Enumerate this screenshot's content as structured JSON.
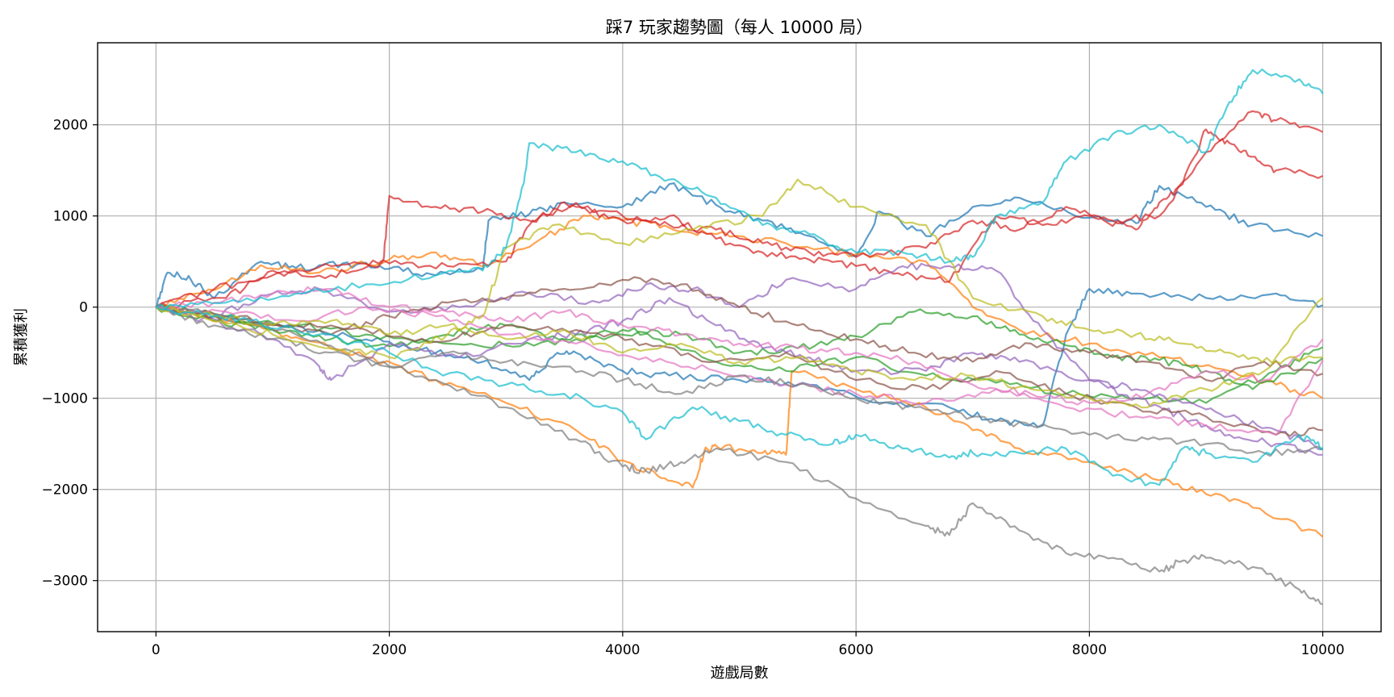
{
  "chart_data": {
    "type": "line",
    "title": "踩7 玩家趨勢圖（每人 10000 局）",
    "xlabel": "遊戲局數",
    "ylabel": "累積獲利",
    "xlim": [
      -500,
      10500
    ],
    "ylim": [
      -3560,
      2900
    ],
    "xticks": [
      0,
      2000,
      4000,
      6000,
      8000,
      10000
    ],
    "yticks": [
      -3000,
      -2000,
      -1000,
      0,
      1000,
      2000
    ],
    "grid": true,
    "legend": "none",
    "series": [
      {
        "color": "#1f77b4",
        "x": [
          0,
          100,
          300,
          500,
          900,
          1200,
          1600,
          2000,
          2400,
          2800,
          2850,
          3200,
          3500,
          4000,
          4400,
          4800,
          5200,
          5600,
          6000,
          6200,
          6600,
          7000,
          7400,
          8000,
          8400,
          8600,
          9000,
          9400,
          10000
        ],
        "y": [
          0,
          380,
          300,
          100,
          500,
          430,
          480,
          420,
          350,
          420,
          950,
          1020,
          1150,
          1100,
          1350,
          1120,
          950,
          780,
          560,
          1050,
          780,
          1100,
          1200,
          980,
          920,
          1330,
          1100,
          900,
          780
        ]
      },
      {
        "color": "#1f77b4",
        "x": [
          0,
          500,
          1000,
          1500,
          2000,
          2400,
          2800,
          3200,
          3400,
          3600,
          4000,
          4400,
          5000,
          5600,
          6200,
          6800,
          7200,
          7600,
          7800,
          8000,
          8400,
          9000,
          9600,
          10000
        ],
        "y": [
          0,
          -100,
          -200,
          -300,
          -380,
          -500,
          -600,
          -800,
          -550,
          -500,
          -700,
          -750,
          -800,
          -850,
          -1050,
          -1100,
          -1250,
          -1300,
          -300,
          200,
          150,
          100,
          150,
          20
        ]
      },
      {
        "color": "#ff7f0e",
        "x": [
          0,
          400,
          900,
          1400,
          2000,
          2400,
          2800,
          3300,
          3700,
          4000,
          4400,
          4800,
          5400,
          6000,
          6600,
          7000,
          7400,
          8000,
          8600,
          9200,
          9600,
          10000
        ],
        "y": [
          0,
          150,
          460,
          380,
          520,
          600,
          450,
          750,
          1000,
          950,
          870,
          800,
          700,
          580,
          500,
          0,
          -250,
          -400,
          -550,
          -700,
          -850,
          -1000
        ]
      },
      {
        "color": "#ff7f0e",
        "x": [
          0,
          400,
          800,
          1200,
          1800,
          2400,
          3000,
          3600,
          4000,
          4300,
          4600,
          4700,
          4800,
          5200,
          5400,
          5450,
          6000,
          6600,
          7000,
          7400,
          8000,
          8600,
          9000,
          9400,
          10000
        ],
        "y": [
          0,
          -100,
          -200,
          -330,
          -550,
          -800,
          -1050,
          -1350,
          -1680,
          -1850,
          -1980,
          -1580,
          -1520,
          -1600,
          -1620,
          -700,
          -900,
          -1100,
          -1350,
          -1550,
          -1700,
          -1900,
          -2050,
          -2200,
          -2520
        ]
      },
      {
        "color": "#2ca02c",
        "x": [
          0,
          500,
          1000,
          1500,
          2000,
          2500,
          3000,
          3500,
          4000,
          4500,
          5000,
          5500,
          6000,
          6500,
          7000,
          7400,
          7800,
          8200,
          8600,
          9000,
          9400,
          10000
        ],
        "y": [
          0,
          -150,
          -250,
          -350,
          -430,
          -300,
          -200,
          -350,
          -250,
          -300,
          -500,
          -450,
          -320,
          -50,
          -100,
          -300,
          -420,
          -550,
          -580,
          -700,
          -900,
          -560
        ]
      },
      {
        "color": "#2ca02c",
        "x": [
          0,
          600,
          1200,
          1800,
          2400,
          3000,
          3600,
          4200,
          4800,
          5400,
          6000,
          6600,
          7200,
          7800,
          8400,
          9000,
          9600,
          10000
        ],
        "y": [
          0,
          -100,
          -200,
          -300,
          -380,
          -420,
          -350,
          -280,
          -600,
          -700,
          -550,
          -750,
          -830,
          -950,
          -1000,
          -1050,
          -700,
          -440
        ]
      },
      {
        "color": "#d62728",
        "x": [
          0,
          600,
          1000,
          1500,
          1950,
          2000,
          2400,
          2800,
          3200,
          3600,
          4000,
          4400,
          4800,
          5200,
          5600,
          6000,
          6400,
          6800,
          7200,
          7600,
          8000,
          8400,
          8600,
          8800,
          9000,
          9200,
          9400,
          9600,
          10000
        ],
        "y": [
          0,
          100,
          400,
          350,
          520,
          1220,
          1100,
          1050,
          950,
          1100,
          950,
          1000,
          750,
          600,
          520,
          450,
          350,
          280,
          1000,
          900,
          1000,
          850,
          1150,
          1350,
          1950,
          1800,
          1650,
          1500,
          1440
        ]
      },
      {
        "color": "#d62728",
        "x": [
          0,
          500,
          1000,
          1500,
          2000,
          2500,
          3000,
          3200,
          3500,
          4000,
          4400,
          4800,
          5200,
          5600,
          6000,
          6600,
          7000,
          7400,
          7800,
          8200,
          8600,
          9000,
          9400,
          9600,
          10000
        ],
        "y": [
          0,
          200,
          350,
          450,
          480,
          450,
          500,
          900,
          1150,
          1000,
          900,
          850,
          700,
          600,
          550,
          650,
          950,
          850,
          1100,
          950,
          1000,
          1700,
          2150,
          2050,
          1920
        ]
      },
      {
        "color": "#9467bd",
        "x": [
          0,
          300,
          900,
          1400,
          1500,
          2000,
          2600,
          3200,
          3600,
          4000,
          4400,
          4800,
          5200,
          5600,
          6000,
          6600,
          7000,
          7400,
          8000,
          8400,
          8800,
          9200,
          9600,
          10000
        ],
        "y": [
          0,
          -100,
          -300,
          -650,
          -800,
          -400,
          -550,
          -350,
          -300,
          -150,
          100,
          -200,
          -450,
          -550,
          -700,
          -700,
          -500,
          -600,
          -800,
          -900,
          -1050,
          -1200,
          -1350,
          -1560
        ]
      },
      {
        "color": "#9467bd",
        "x": [
          0,
          500,
          1000,
          1400,
          2000,
          2600,
          3200,
          3800,
          4200,
          4600,
          5000,
          5400,
          6000,
          6400,
          6800,
          7200,
          7600,
          8000,
          8400,
          8800,
          9200,
          9600,
          10000
        ],
        "y": [
          0,
          -100,
          150,
          200,
          -50,
          0,
          150,
          50,
          250,
          200,
          0,
          300,
          200,
          450,
          450,
          400,
          -250,
          -800,
          -1000,
          -1200,
          -1400,
          -1500,
          -1620
        ]
      },
      {
        "color": "#8c564b",
        "x": [
          0,
          600,
          1200,
          1800,
          2400,
          3000,
          3600,
          4200,
          4800,
          5400,
          6000,
          6600,
          7200,
          7800,
          8400,
          9000,
          9600,
          10000
        ],
        "y": [
          0,
          -100,
          -200,
          -250,
          -380,
          -200,
          -250,
          -400,
          -600,
          -500,
          -800,
          -900,
          -700,
          -950,
          -1100,
          -1200,
          -1400,
          -1350
        ]
      },
      {
        "color": "#8c564b",
        "x": [
          0,
          500,
          1000,
          1500,
          2000,
          2500,
          3000,
          3500,
          4000,
          4500,
          5000,
          5500,
          6000,
          6500,
          7000,
          7500,
          8000,
          8500,
          9000,
          9500,
          10000
        ],
        "y": [
          0,
          -100,
          -200,
          -300,
          -100,
          50,
          100,
          200,
          300,
          250,
          0,
          -200,
          -350,
          -500,
          -600,
          -400,
          -500,
          -600,
          -800,
          -600,
          -730
        ]
      },
      {
        "color": "#e377c2",
        "x": [
          0,
          600,
          1200,
          1800,
          2400,
          3000,
          3600,
          4200,
          4800,
          5400,
          6000,
          6600,
          7200,
          7800,
          8400,
          9000,
          9600,
          10000
        ],
        "y": [
          0,
          -50,
          -150,
          0,
          -100,
          -300,
          -400,
          -550,
          -700,
          -850,
          -950,
          -1050,
          -900,
          -1100,
          -1200,
          -1300,
          -1400,
          -580
        ]
      },
      {
        "color": "#e377c2",
        "x": [
          0,
          500,
          1000,
          1500,
          2000,
          2500,
          3000,
          3500,
          4000,
          4500,
          5000,
          5500,
          6000,
          6500,
          7000,
          7500,
          8000,
          8500,
          9000,
          9500,
          10000
        ],
        "y": [
          0,
          50,
          150,
          200,
          0,
          -50,
          -150,
          -50,
          -200,
          -300,
          -400,
          -450,
          -500,
          -600,
          -850,
          -950,
          -1050,
          -950,
          -700,
          -800,
          -350
        ]
      },
      {
        "color": "#7f7f7f",
        "x": [
          0,
          600,
          1200,
          1800,
          2400,
          3000,
          3600,
          4000,
          4200,
          4500,
          4800,
          5400,
          6000,
          6600,
          6800,
          7000,
          7400,
          7800,
          8200,
          8600,
          8800,
          9000,
          9400,
          9800,
          10000
        ],
        "y": [
          0,
          -100,
          -300,
          -550,
          -800,
          -1100,
          -1450,
          -1750,
          -1800,
          -1700,
          -1550,
          -1700,
          -2100,
          -2400,
          -2500,
          -2150,
          -2450,
          -2700,
          -2750,
          -2900,
          -2780,
          -2750,
          -2850,
          -3100,
          -3260
        ]
      },
      {
        "color": "#7f7f7f",
        "x": [
          0,
          500,
          1000,
          1500,
          2000,
          2500,
          3000,
          3500,
          4000,
          4500,
          5000,
          5500,
          6000,
          6500,
          7000,
          7500,
          8000,
          8500,
          9000,
          9500,
          10000
        ],
        "y": [
          0,
          -200,
          -350,
          -500,
          -650,
          -500,
          -600,
          -650,
          -800,
          -950,
          -750,
          -850,
          -1000,
          -1100,
          -1200,
          -1300,
          -1400,
          -1450,
          -1500,
          -1600,
          -1560
        ]
      },
      {
        "color": "#bcbd22",
        "x": [
          0,
          500,
          1000,
          1500,
          2000,
          2500,
          2800,
          3000,
          3400,
          4000,
          4600,
          5200,
          5500,
          6000,
          6600,
          7000,
          7600,
          8000,
          8400,
          8800,
          9200,
          9600,
          10000
        ],
        "y": [
          0,
          -150,
          -300,
          -450,
          -550,
          -300,
          -100,
          650,
          900,
          700,
          850,
          1000,
          1400,
          1100,
          900,
          100,
          -100,
          -250,
          -300,
          -400,
          -500,
          -600,
          -550
        ]
      },
      {
        "color": "#bcbd22",
        "x": [
          0,
          500,
          1000,
          1500,
          2000,
          2500,
          3000,
          3500,
          4000,
          4500,
          5000,
          5500,
          6000,
          6500,
          7000,
          7500,
          8000,
          8500,
          9000,
          9500,
          10000
        ],
        "y": [
          0,
          -100,
          -200,
          -150,
          -300,
          -200,
          -350,
          -250,
          -500,
          -400,
          -600,
          -550,
          -700,
          -800,
          -750,
          -900,
          -1000,
          -1100,
          -900,
          -700,
          100
        ]
      },
      {
        "color": "#17becf",
        "x": [
          0,
          600,
          1200,
          1800,
          2400,
          2800,
          3000,
          3150,
          3200,
          3600,
          4000,
          4400,
          4800,
          5200,
          5600,
          6000,
          6400,
          6800,
          7000,
          7200,
          7600,
          7800,
          8200,
          8600,
          9000,
          9200,
          9400,
          9800,
          10000
        ],
        "y": [
          0,
          50,
          150,
          250,
          350,
          400,
          650,
          1350,
          1800,
          1700,
          1600,
          1400,
          1200,
          900,
          800,
          600,
          600,
          500,
          550,
          1000,
          1150,
          1600,
          1900,
          2000,
          1700,
          2250,
          2600,
          2500,
          2340
        ]
      },
      {
        "color": "#17becf",
        "x": [
          0,
          400,
          800,
          1400,
          2000,
          2400,
          3000,
          3500,
          4000,
          4200,
          4600,
          5000,
          5400,
          5800,
          6000,
          6400,
          6800,
          7000,
          7400,
          7800,
          8200,
          8600,
          8800,
          9000,
          9400,
          9800,
          10000
        ],
        "y": [
          0,
          -80,
          -150,
          -300,
          -500,
          -700,
          -850,
          -950,
          -1150,
          -1450,
          -1100,
          -1250,
          -1400,
          -1500,
          -1400,
          -1550,
          -1650,
          -1600,
          -1600,
          -1550,
          -1850,
          -1950,
          -1550,
          -1600,
          -1700,
          -1400,
          -1540
        ]
      }
    ]
  }
}
